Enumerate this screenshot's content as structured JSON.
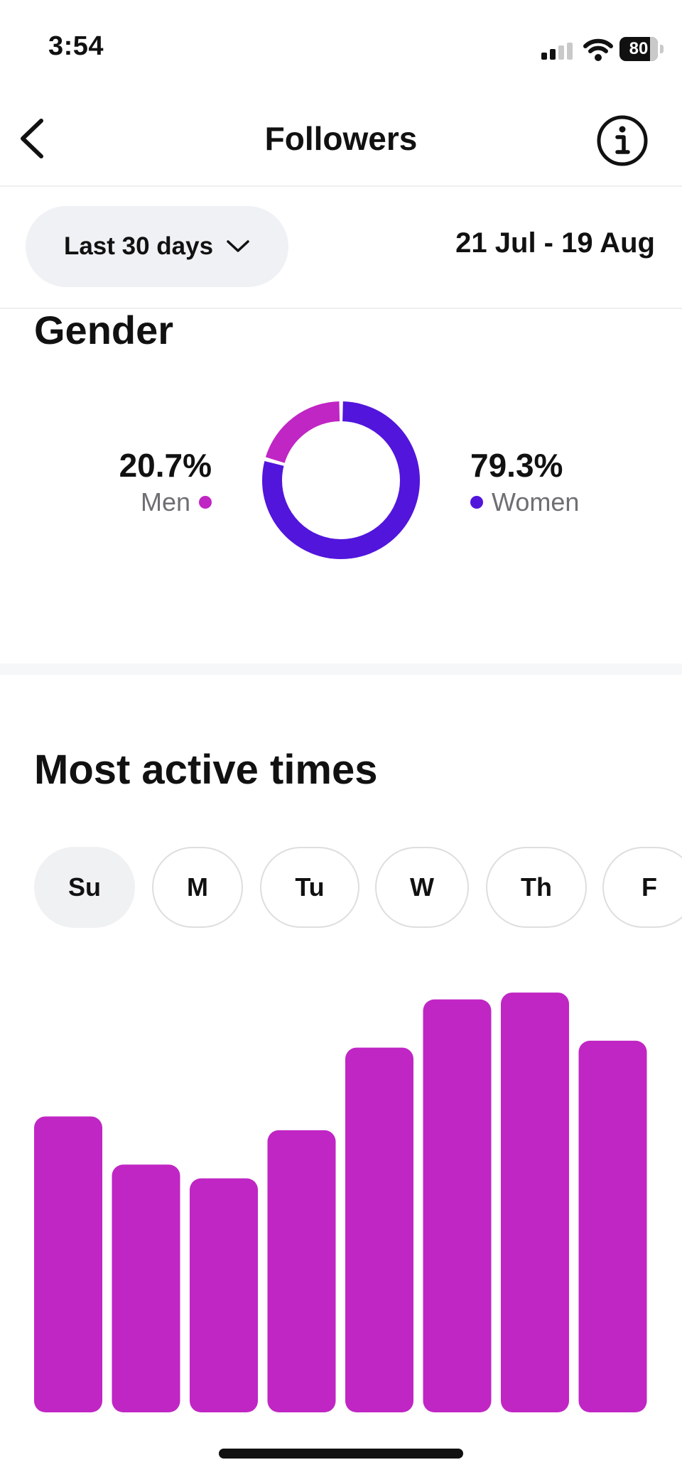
{
  "status_bar": {
    "time": "3:54",
    "battery": "80"
  },
  "header": {
    "title": "Followers",
    "back_icon": "chevron-left-icon",
    "info_icon": "info-icon"
  },
  "filters": {
    "range_label": "Last 30 days",
    "range_icon": "chevron-down-icon",
    "date_range": "21 Jul - 19 Aug"
  },
  "gender": {
    "heading": "Gender",
    "men": {
      "percent": "20.7%",
      "label": "Men",
      "value": 20.7,
      "color": "#c026c4"
    },
    "women": {
      "percent": "79.3%",
      "label": "Women",
      "value": 79.3,
      "color": "#5215dc"
    }
  },
  "active_times": {
    "heading": "Most active times",
    "days": [
      "Su",
      "M",
      "Tu",
      "W",
      "Th",
      "F"
    ],
    "selected_day": "Su"
  },
  "chart_data": {
    "type": "bar",
    "values": [
      43,
      36,
      34,
      41,
      53,
      60,
      61,
      54
    ],
    "ylim": [
      0,
      64
    ],
    "color": "#c026c4"
  }
}
